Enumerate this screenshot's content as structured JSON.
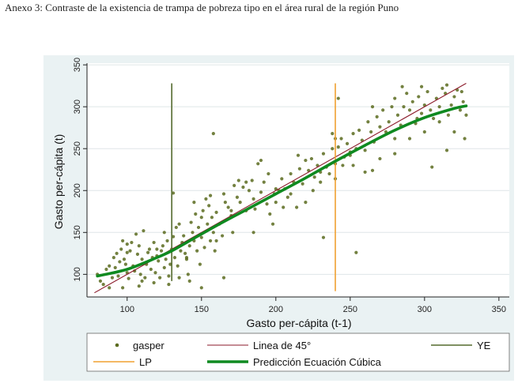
{
  "caption": "Anexo 3: Contraste de la existencia de trampa de pobreza tipo en el área rural de la región Puno",
  "chart_data": {
    "type": "scatter",
    "title": "",
    "xlabel": "Gasto per-cápita (t-1)",
    "ylabel": "Gasto per-cápita (t)",
    "xlim": [
      73,
      357
    ],
    "ylim": [
      73,
      352
    ],
    "xticks": [
      100,
      150,
      200,
      250,
      300,
      350
    ],
    "yticks": [
      100,
      150,
      200,
      250,
      300,
      350
    ],
    "grid": "horizontal",
    "legend_position": "bottom",
    "colors": {
      "panel_bg": "#eaf2f3",
      "plot_bg": "#ffffff",
      "scatter": "#5b6b1f",
      "line45": "#8b1a2a",
      "ye": "#556b2f",
      "lp": "#f0a030",
      "cubic": "#0f8a20"
    },
    "series": [
      {
        "name": "gasper",
        "kind": "scatter",
        "points": [
          [
            80,
            100
          ],
          [
            82,
            92
          ],
          [
            84,
            88
          ],
          [
            86,
            106
          ],
          [
            88,
            110
          ],
          [
            90,
            96
          ],
          [
            91,
            120
          ],
          [
            92,
            108
          ],
          [
            93,
            125
          ],
          [
            94,
            98
          ],
          [
            95,
            115
          ],
          [
            96,
            130
          ],
          [
            97,
            140
          ],
          [
            98,
            118
          ],
          [
            99,
            112
          ],
          [
            100,
            102
          ],
          [
            100,
            126
          ],
          [
            101,
            95
          ],
          [
            102,
            128
          ],
          [
            103,
            138
          ],
          [
            104,
            110
          ],
          [
            105,
            104
          ],
          [
            106,
            148
          ],
          [
            107,
            124
          ],
          [
            108,
            134
          ],
          [
            109,
            100
          ],
          [
            110,
            118
          ],
          [
            111,
            152
          ],
          [
            112,
            96
          ],
          [
            113,
            112
          ],
          [
            114,
            126
          ],
          [
            115,
            130
          ],
          [
            116,
            106
          ],
          [
            117,
            120
          ],
          [
            118,
            138
          ],
          [
            119,
            102
          ],
          [
            120,
            122
          ],
          [
            121,
            116
          ],
          [
            122,
            96
          ],
          [
            123,
            128
          ],
          [
            124,
            134
          ],
          [
            125,
            108
          ],
          [
            126,
            118
          ],
          [
            127,
            140
          ],
          [
            128,
            98
          ],
          [
            129,
            112
          ],
          [
            130,
            130
          ],
          [
            131,
            145
          ],
          [
            132,
            120
          ],
          [
            133,
            156
          ],
          [
            134,
            110
          ],
          [
            135,
            96
          ],
          [
            136,
            128
          ],
          [
            137,
            138
          ],
          [
            138,
            146
          ],
          [
            139,
            125
          ],
          [
            140,
            118
          ],
          [
            141,
            100
          ],
          [
            142,
            134
          ],
          [
            143,
            162
          ],
          [
            144,
            150
          ],
          [
            145,
            140
          ],
          [
            146,
            172
          ],
          [
            147,
            128
          ],
          [
            148,
            156
          ],
          [
            149,
            112
          ],
          [
            150,
            144
          ],
          [
            151,
            176
          ],
          [
            152,
            132
          ],
          [
            153,
            190
          ],
          [
            154,
            160
          ],
          [
            155,
            182
          ],
          [
            156,
            140
          ],
          [
            157,
            168
          ],
          [
            158,
            150
          ],
          [
            159,
            128
          ],
          [
            160,
            174
          ],
          [
            162,
            160
          ],
          [
            164,
            146
          ],
          [
            165,
            196
          ],
          [
            166,
            186
          ],
          [
            168,
            180
          ],
          [
            170,
            170
          ],
          [
            171,
            150
          ],
          [
            172,
            206
          ],
          [
            174,
            192
          ],
          [
            176,
            186
          ],
          [
            178,
            204
          ],
          [
            180,
            176
          ],
          [
            182,
            200
          ],
          [
            184,
            212
          ],
          [
            185,
            190
          ],
          [
            186,
            178
          ],
          [
            188,
            232
          ],
          [
            190,
            198
          ],
          [
            192,
            210
          ],
          [
            194,
            184
          ],
          [
            196,
            172
          ],
          [
            198,
            160
          ],
          [
            199,
            196
          ],
          [
            200,
            186
          ],
          [
            202,
            200
          ],
          [
            204,
            214
          ],
          [
            206,
            202
          ],
          [
            208,
            192
          ],
          [
            210,
            220
          ],
          [
            212,
            210
          ],
          [
            214,
            180
          ],
          [
            216,
            226
          ],
          [
            218,
            208
          ],
          [
            220,
            236
          ],
          [
            222,
            224
          ],
          [
            224,
            238
          ],
          [
            226,
            216
          ],
          [
            228,
            230
          ],
          [
            230,
            210
          ],
          [
            232,
            244
          ],
          [
            234,
            228
          ],
          [
            236,
            220
          ],
          [
            238,
            250
          ],
          [
            240,
            232
          ],
          [
            242,
            252
          ],
          [
            244,
            262
          ],
          [
            246,
            240
          ],
          [
            248,
            256
          ],
          [
            250,
            246
          ],
          [
            252,
            268
          ],
          [
            254,
            250
          ],
          [
            256,
            272
          ],
          [
            258,
            260
          ],
          [
            260,
            248
          ],
          [
            262,
            282
          ],
          [
            264,
            270
          ],
          [
            266,
            258
          ],
          [
            268,
            288
          ],
          [
            270,
            276
          ],
          [
            272,
            296
          ],
          [
            274,
            270
          ],
          [
            276,
            282
          ],
          [
            278,
            300
          ],
          [
            280,
            310
          ],
          [
            282,
            290
          ],
          [
            284,
            278
          ],
          [
            286,
            300
          ],
          [
            288,
            316
          ],
          [
            290,
            296
          ],
          [
            292,
            306
          ],
          [
            294,
            280
          ],
          [
            296,
            312
          ],
          [
            298,
            292
          ],
          [
            300,
            302
          ],
          [
            302,
            318
          ],
          [
            304,
            296
          ],
          [
            306,
            286
          ],
          [
            308,
            310
          ],
          [
            310,
            300
          ],
          [
            312,
            322
          ],
          [
            314,
            316
          ],
          [
            316,
            290
          ],
          [
            318,
            302
          ],
          [
            320,
            312
          ],
          [
            322,
            320
          ],
          [
            324,
            296
          ],
          [
            326,
            306
          ],
          [
            328,
            290
          ],
          [
            100,
            136
          ],
          [
            110,
            92
          ],
          [
            120,
            130
          ],
          [
            140,
            120
          ],
          [
            150,
            168
          ],
          [
            156,
            194
          ],
          [
            160,
            140
          ],
          [
            175,
            212
          ],
          [
            185,
            150
          ],
          [
            195,
            220
          ],
          [
            205,
            180
          ],
          [
            215,
            242
          ],
          [
            225,
            200
          ],
          [
            238,
            268
          ],
          [
            245,
            230
          ],
          [
            252,
            230
          ],
          [
            265,
            300
          ],
          [
            280,
            262
          ],
          [
            295,
            286
          ],
          [
            305,
            228
          ],
          [
            315,
            248
          ],
          [
            327,
            262
          ],
          [
            232,
            144
          ],
          [
            254,
            126
          ],
          [
            158,
            268
          ],
          [
            242,
            310
          ],
          [
            131,
            197
          ],
          [
            150,
            84
          ],
          [
            165,
            96
          ],
          [
            142,
            92
          ],
          [
            128,
            88
          ],
          [
            118,
            90
          ],
          [
            108,
            86
          ],
          [
            97,
            84
          ],
          [
            88,
            84
          ],
          [
            125,
            150
          ],
          [
            135,
            160
          ],
          [
            145,
            186
          ],
          [
            170,
            176
          ],
          [
            180,
            210
          ],
          [
            190,
            236
          ],
          [
            200,
            202
          ],
          [
            210,
            196
          ],
          [
            220,
            186
          ],
          [
            230,
            222
          ],
          [
            240,
            214
          ],
          [
            250,
            242
          ],
          [
            260,
            222
          ],
          [
            270,
            238
          ],
          [
            280,
            244
          ],
          [
            290,
            262
          ],
          [
            300,
            270
          ],
          [
            310,
            282
          ],
          [
            320,
            270
          ],
          [
            285,
            324
          ],
          [
            298,
            324
          ],
          [
            315,
            326
          ],
          [
            325,
            318
          ],
          [
            265,
            224
          ],
          [
            240,
            262
          ]
        ]
      },
      {
        "name": "Linea de 45°",
        "kind": "line",
        "x": [
          78,
          328
        ],
        "y": [
          78,
          328
        ]
      },
      {
        "name": "YE",
        "kind": "vline",
        "x": 130,
        "y": [
          92,
          328
        ]
      },
      {
        "name": "LP",
        "kind": "vline",
        "x": 240,
        "y": [
          80,
          328
        ]
      },
      {
        "name": "Predicción Ecuación Cúbica",
        "kind": "curve",
        "x": [
          80,
          100,
          120,
          130,
          140,
          160,
          180,
          200,
          220,
          240,
          260,
          280,
          300,
          320,
          328
        ],
        "y": [
          98,
          106,
          120,
          128,
          138,
          158,
          177,
          196,
          215,
          235,
          254,
          272,
          287,
          298,
          301
        ]
      }
    ],
    "legend": [
      "gasper",
      "Linea de 45°",
      "YE",
      "LP",
      "Predicción Ecuación Cúbica"
    ]
  }
}
